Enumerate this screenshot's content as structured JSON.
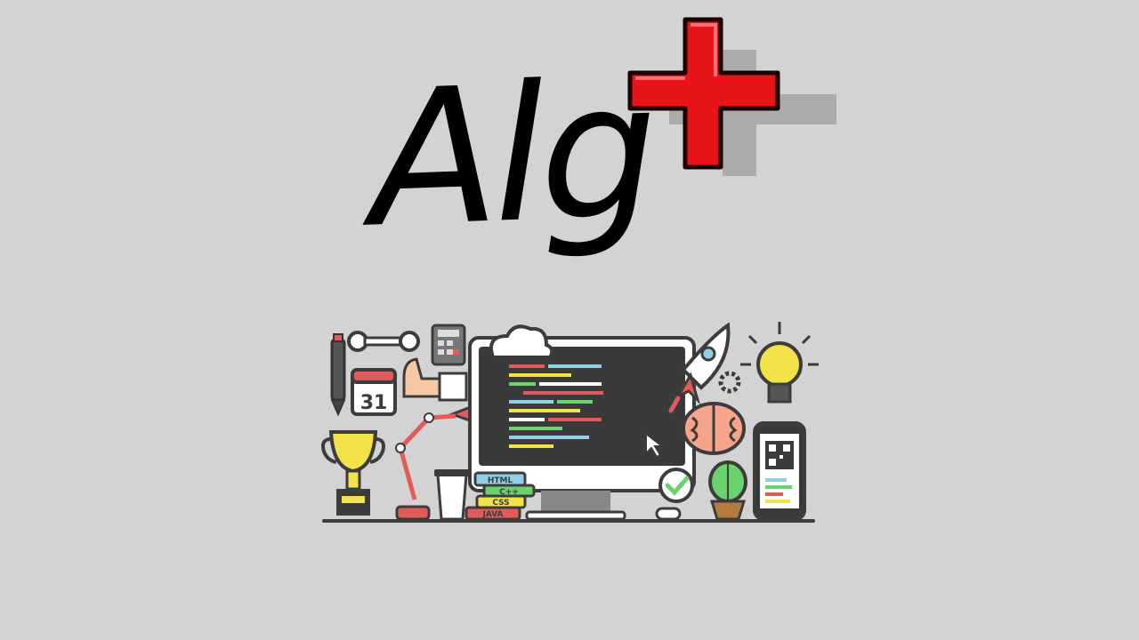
{
  "logo": {
    "text": "Alg",
    "accent_color": "#e8141a"
  },
  "illustration": {
    "book_labels": [
      "HTML",
      "C++",
      "CSS",
      "JAVA"
    ],
    "calendar_day": "31"
  },
  "colors": {
    "background": "#d3d3d3",
    "ink": "#3c3c3c",
    "screen": "#3a3a3a",
    "yellow": "#f2e24a",
    "red": "#e35a5a",
    "green": "#6bd36b",
    "blue": "#8fd0e8",
    "skin": "#f6c8a2"
  }
}
